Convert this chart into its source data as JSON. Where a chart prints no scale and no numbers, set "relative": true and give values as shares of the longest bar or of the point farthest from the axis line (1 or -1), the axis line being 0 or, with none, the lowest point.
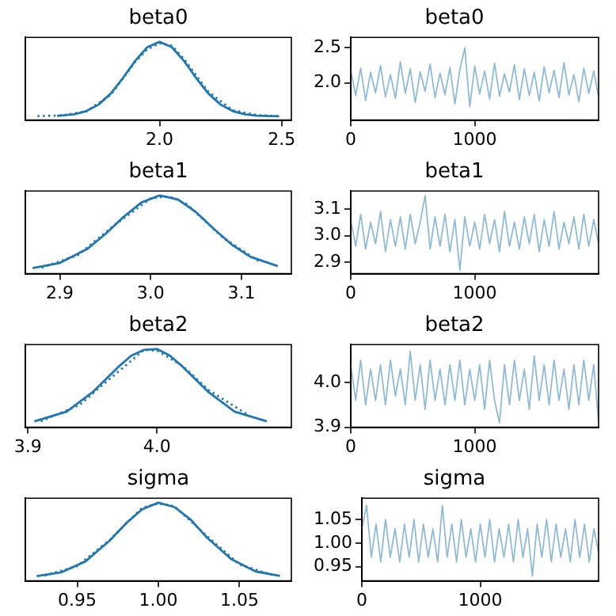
{
  "chart_data": [
    {
      "type": "line",
      "title": "beta0",
      "relative": true,
      "tick_labels": "x",
      "xlim": [
        1.45,
        2.54
      ],
      "xticks": [
        {
          "value": 2,
          "label": "2.0"
        },
        2.5
      ],
      "series": [
        {
          "color": "#1f77b4",
          "x": [
            1.58,
            1.65,
            1.7,
            1.75,
            1.8,
            1.85,
            1.9,
            1.95,
            2.0,
            2.05,
            2.1,
            2.15,
            2.2,
            2.25,
            2.3,
            2.35,
            2.4,
            2.49
          ],
          "values": [
            0.005,
            0.027,
            0.07,
            0.157,
            0.306,
            0.514,
            0.744,
            0.929,
            1,
            0.929,
            0.744,
            0.514,
            0.306,
            0.157,
            0.07,
            0.027,
            0.009,
            0.001
          ]
        },
        {
          "color": "#1f77b4",
          "line_style": "dotted",
          "x": [
            1.5,
            1.6,
            1.7,
            1.8,
            1.9,
            1.95,
            2.0,
            2.05,
            2.1,
            2.2,
            2.3,
            2.4,
            2.49
          ],
          "values": [
            0.003,
            0.012,
            0.065,
            0.29,
            0.73,
            0.9,
            0.98,
            0.95,
            0.77,
            0.33,
            0.08,
            0.015,
            0.002
          ]
        }
      ]
    },
    {
      "type": "line",
      "title": "beta0",
      "xlim": [
        0,
        1999
      ],
      "xticks": [
        0,
        1000
      ],
      "ylim": [
        1.47,
        2.65
      ],
      "yticks": [
        {
          "value": 2,
          "label": "2.0"
        },
        2.5
      ],
      "series": [
        {
          "color": "#8fbbd9",
          "x": [
            0,
            40,
            80,
            120,
            160,
            200,
            240,
            280,
            320,
            360,
            400,
            440,
            480,
            520,
            560,
            600,
            640,
            680,
            720,
            760,
            800,
            840,
            880,
            920,
            960,
            1000,
            1040,
            1080,
            1120,
            1160,
            1200,
            1240,
            1280,
            1320,
            1360,
            1400,
            1440,
            1480,
            1520,
            1560,
            1600,
            1640,
            1680,
            1720,
            1760,
            1800,
            1840,
            1880,
            1920,
            1960,
            1999
          ],
          "values": [
            2.18,
            1.82,
            2.21,
            1.75,
            2.15,
            1.86,
            2.25,
            1.8,
            2.12,
            1.78,
            2.3,
            1.85,
            2.2,
            1.72,
            2.16,
            1.88,
            2.27,
            1.79,
            2.14,
            1.83,
            2.22,
            1.7,
            2.19,
            2.5,
            1.66,
            2.24,
            1.84,
            2.17,
            1.77,
            2.28,
            1.81,
            2.13,
            1.87,
            2.26,
            1.76,
            2.2,
            1.82,
            2.15,
            1.74,
            2.23,
            1.86,
            2.18,
            1.79,
            2.29,
            1.83,
            2.12,
            1.73,
            2.21,
            1.85,
            2.17,
            1.8
          ]
        }
      ]
    },
    {
      "type": "line",
      "title": "beta1",
      "relative": true,
      "tick_labels": "x",
      "xlim": [
        2.862,
        3.155
      ],
      "xticks": [
        2.9,
        {
          "value": 3,
          "label": "3.0"
        },
        3.1
      ],
      "series": [
        {
          "color": "#1f77b4",
          "x": [
            2.87,
            2.9,
            2.93,
            2.95,
            2.97,
            2.99,
            3.01,
            3.03,
            3.05,
            3.07,
            3.09,
            3.11,
            3.14
          ],
          "values": [
            0.023,
            0.094,
            0.28,
            0.48,
            0.71,
            0.907,
            1,
            0.947,
            0.776,
            0.547,
            0.334,
            0.175,
            0.051
          ]
        },
        {
          "color": "#1f77b4",
          "line_style": "dotted",
          "x": [
            2.88,
            2.92,
            2.96,
            3.0,
            3.02,
            3.04,
            3.08,
            3.12
          ],
          "values": [
            0.03,
            0.2,
            0.6,
            0.96,
            0.99,
            0.88,
            0.43,
            0.11
          ]
        }
      ]
    },
    {
      "type": "line",
      "title": "beta1",
      "xlim": [
        0,
        1999
      ],
      "xticks": [
        0,
        1000
      ],
      "ylim": [
        2.858,
        3.167
      ],
      "yticks": [
        2.9,
        {
          "value": 3,
          "label": "3.0"
        },
        3.1
      ],
      "series": [
        {
          "color": "#8fbbd9",
          "x": [
            0,
            40,
            80,
            120,
            160,
            200,
            240,
            280,
            320,
            360,
            400,
            440,
            480,
            520,
            560,
            600,
            640,
            680,
            720,
            760,
            800,
            840,
            880,
            920,
            960,
            1000,
            1040,
            1080,
            1120,
            1160,
            1200,
            1240,
            1280,
            1320,
            1360,
            1400,
            1440,
            1480,
            1520,
            1560,
            1600,
            1640,
            1680,
            1720,
            1760,
            1800,
            1840,
            1880,
            1920,
            1960,
            1999
          ],
          "values": [
            3.06,
            2.96,
            3.08,
            2.95,
            3.05,
            2.97,
            3.09,
            2.94,
            3.06,
            2.96,
            3.07,
            2.95,
            3.08,
            2.97,
            3.05,
            3.15,
            2.95,
            3.07,
            2.96,
            3.08,
            2.94,
            3.06,
            2.87,
            3.07,
            2.96,
            3.05,
            2.95,
            3.08,
            2.97,
            3.06,
            2.94,
            3.09,
            2.96,
            3.05,
            2.95,
            3.07,
            2.97,
            3.08,
            2.94,
            3.06,
            2.96,
            3.09,
            2.95,
            3.05,
            2.97,
            3.07,
            2.95,
            3.08,
            2.96,
            3.06,
            2.97
          ]
        }
      ]
    },
    {
      "type": "line",
      "title": "beta2",
      "relative": true,
      "tick_labels": "x",
      "xlim": [
        3.898,
        4.104
      ],
      "xticks": [
        3.9,
        {
          "value": 4,
          "label": "4.0"
        }
      ],
      "series": [
        {
          "color": "#1f77b4",
          "x": [
            3.905,
            3.93,
            3.95,
            3.97,
            3.98,
            3.99,
            4.0,
            4.01,
            4.02,
            4.04,
            4.06,
            4.085
          ],
          "values": [
            0.03,
            0.16,
            0.42,
            0.76,
            0.91,
            0.99,
            1,
            0.91,
            0.76,
            0.42,
            0.16,
            0.03
          ]
        },
        {
          "color": "#1f77b4",
          "line_style": "dotted",
          "x": [
            3.91,
            3.94,
            3.96,
            3.99,
            4.0,
            4.02,
            4.04,
            4.07
          ],
          "values": [
            0.03,
            0.25,
            0.55,
            0.99,
            0.98,
            0.77,
            0.45,
            0.12
          ]
        }
      ]
    },
    {
      "type": "line",
      "title": "beta2",
      "xlim": [
        0,
        1999
      ],
      "xticks": [
        0,
        1000
      ],
      "ylim": [
        3.9,
        4.085
      ],
      "yticks": [
        3.9,
        {
          "value": 4,
          "label": "4.0"
        }
      ],
      "series": [
        {
          "color": "#8fbbd9",
          "x": [
            0,
            40,
            80,
            120,
            160,
            200,
            240,
            280,
            320,
            360,
            400,
            440,
            480,
            520,
            560,
            600,
            640,
            680,
            720,
            760,
            800,
            840,
            880,
            920,
            960,
            1000,
            1040,
            1080,
            1120,
            1160,
            1200,
            1240,
            1280,
            1320,
            1360,
            1400,
            1440,
            1480,
            1520,
            1560,
            1600,
            1640,
            1680,
            1720,
            1760,
            1800,
            1840,
            1880,
            1920,
            1960,
            1999
          ],
          "values": [
            4.04,
            3.96,
            4.05,
            3.95,
            4.03,
            3.96,
            4.04,
            3.95,
            4.05,
            3.97,
            4.03,
            3.95,
            4.07,
            3.96,
            4.04,
            3.94,
            4.05,
            3.96,
            4.03,
            3.95,
            4.04,
            3.96,
            4.05,
            3.95,
            4.03,
            3.96,
            4.04,
            3.94,
            4.05,
            3.96,
            3.91,
            4.04,
            3.95,
            4.05,
            3.96,
            4.03,
            3.94,
            4.06,
            3.96,
            4.04,
            3.95,
            4.05,
            3.96,
            4.03,
            3.94,
            4.04,
            3.95,
            4.05,
            3.96,
            4.04,
            3.91
          ]
        }
      ]
    },
    {
      "type": "line",
      "title": "sigma",
      "relative": true,
      "tick_labels": "x",
      "xlim": [
        0.918,
        1.082
      ],
      "xticks": [
        0.95,
        {
          "value": 1,
          "label": "1.00"
        },
        1.05
      ],
      "series": [
        {
          "color": "#1f77b4",
          "x": [
            0.925,
            0.94,
            0.955,
            0.97,
            0.98,
            0.99,
            1.0,
            1.01,
            1.02,
            1.03,
            1.045,
            1.06,
            1.075
          ],
          "values": [
            0.014,
            0.063,
            0.21,
            0.49,
            0.72,
            0.91,
            1,
            0.94,
            0.77,
            0.53,
            0.24,
            0.076,
            0.017
          ]
        },
        {
          "color": "#1f77b4",
          "line_style": "dotted",
          "x": [
            0.93,
            0.95,
            0.97,
            0.99,
            1.0,
            1.01,
            1.03,
            1.05,
            1.07
          ],
          "values": [
            0.02,
            0.15,
            0.5,
            0.93,
            0.99,
            0.95,
            0.55,
            0.17,
            0.03
          ]
        }
      ]
    },
    {
      "type": "line",
      "title": "sigma",
      "xlim": [
        0,
        1999
      ],
      "xticks": [
        0,
        1000
      ],
      "ylim": [
        0.92,
        1.095
      ],
      "yticks": [
        0.95,
        {
          "value": 1,
          "label": "1.00"
        },
        1.05
      ],
      "series": [
        {
          "color": "#8fbbd9",
          "x": [
            0,
            40,
            80,
            120,
            160,
            200,
            240,
            280,
            320,
            360,
            400,
            440,
            480,
            520,
            560,
            600,
            640,
            680,
            720,
            760,
            800,
            840,
            880,
            920,
            960,
            1000,
            1040,
            1080,
            1120,
            1160,
            1200,
            1240,
            1280,
            1320,
            1360,
            1400,
            1440,
            1480,
            1520,
            1560,
            1600,
            1640,
            1680,
            1720,
            1760,
            1800,
            1840,
            1880,
            1920,
            1960,
            1999
          ],
          "values": [
            1.03,
            1.08,
            0.97,
            1.04,
            0.96,
            1.05,
            0.97,
            1.03,
            0.96,
            1.04,
            0.97,
            1.05,
            0.96,
            1.04,
            0.97,
            1.03,
            0.96,
            1.08,
            0.97,
            1.04,
            0.96,
            1.05,
            0.97,
            1.03,
            0.96,
            1.04,
            0.97,
            1.05,
            0.96,
            1.03,
            0.97,
            1.04,
            0.96,
            1.05,
            0.97,
            1.03,
            0.93,
            1.04,
            0.97,
            1.05,
            0.96,
            1.04,
            0.97,
            1.03,
            0.96,
            1.05,
            0.97,
            1.04,
            0.96,
            1.03,
            0.98
          ]
        }
      ]
    }
  ]
}
